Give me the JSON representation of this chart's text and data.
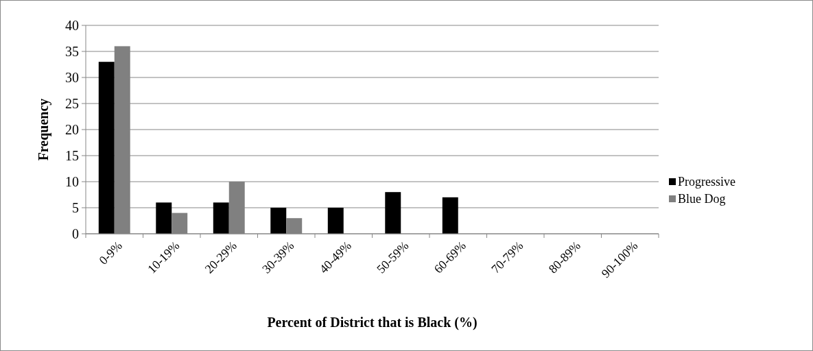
{
  "chart_data": {
    "type": "bar",
    "xlabel": "Percent of District that is Black (%)",
    "ylabel": "Frequency",
    "categories": [
      "0-9%",
      "10-19%",
      "20-29%",
      "30-39%",
      "40-49%",
      "50-59%",
      "60-69%",
      "70-79%",
      "80-89%",
      "90-100%"
    ],
    "series": [
      {
        "name": "Progressive",
        "color": "#000000",
        "values": [
          33,
          6,
          6,
          5,
          5,
          8,
          7,
          0,
          0,
          0
        ]
      },
      {
        "name": "Blue Dog",
        "color": "#808080",
        "values": [
          36,
          4,
          10,
          3,
          0,
          0,
          0,
          0,
          0,
          0
        ]
      }
    ],
    "ylim": [
      0,
      40
    ],
    "yticks": [
      0,
      5,
      10,
      15,
      20,
      25,
      30,
      35,
      40
    ],
    "grid": "y",
    "legend": "right"
  }
}
